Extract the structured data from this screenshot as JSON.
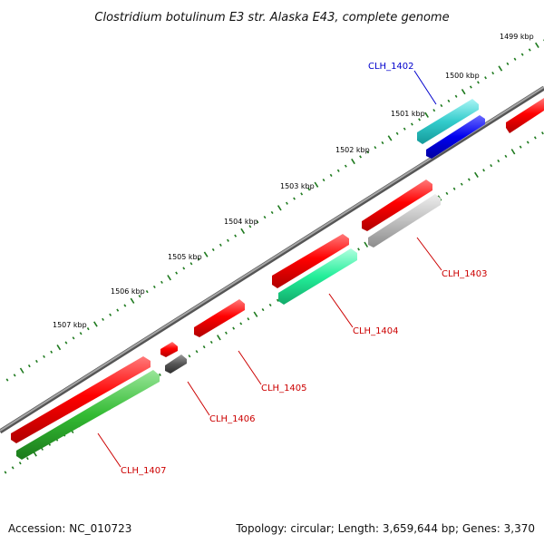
{
  "title": "Clostridium botulinum E3 str. Alaska E43, complete genome",
  "footer": {
    "accession": "Accession: NC_010723",
    "summary": "Topology: circular; Length: 3,659,644 bp; Genes: 3,370"
  },
  "ticks": [
    "1499 kbp",
    "1500 kbp",
    "1501 kbp",
    "1502 kbp",
    "1503 kbp",
    "1504 kbp",
    "1505 kbp",
    "1506 kbp",
    "1507 kbp"
  ],
  "genes": [
    {
      "id": "CLH_1402",
      "color": "#0000dd"
    },
    {
      "id": "CLH_1403",
      "color": "#cc0000"
    },
    {
      "id": "CLH_1404",
      "color": "#cc0000"
    },
    {
      "id": "CLH_1405",
      "color": "#cc0000"
    },
    {
      "id": "CLH_1406",
      "color": "#cc0000"
    },
    {
      "id": "CLH_1407",
      "color": "#cc0000"
    }
  ],
  "colors": {
    "backbone": "#8a8a8a",
    "tick_ring": "#1e7a1e",
    "cds": "#ff0000",
    "cyan_feature": "#33cccc",
    "blue_feature": "#0000ee",
    "aqua_feature": "#22ee99",
    "gray_feature": "#c0c0c0",
    "dark_feature": "#555555",
    "green_feature": "#33bb33"
  }
}
